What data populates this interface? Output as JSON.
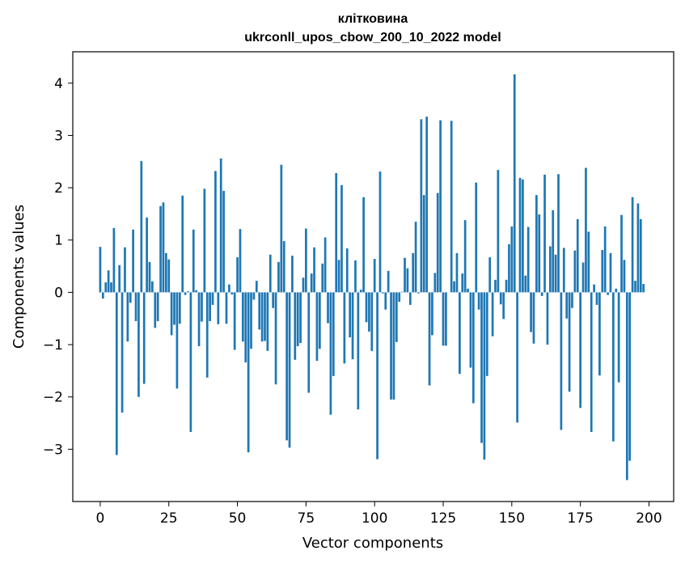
{
  "chart_data": {
    "type": "bar",
    "title": "клітковина",
    "subtitle": "ukrconll_upos_cbow_200_10_2022 model",
    "xlabel": "Vector components",
    "ylabel": "Components values",
    "xlim": [
      -10,
      209
    ],
    "ylim": [
      -4.0,
      4.6
    ],
    "xticks": [
      0,
      25,
      50,
      75,
      100,
      125,
      150,
      175,
      200
    ],
    "yticks": [
      -3,
      -2,
      -1,
      0,
      1,
      2,
      3,
      4
    ],
    "bar_color": "#1f77b4",
    "grid": false,
    "legend": "none",
    "values": [
      0.87,
      -0.12,
      0.19,
      0.42,
      0.19,
      1.23,
      -3.11,
      0.52,
      -2.3,
      0.86,
      -0.94,
      -0.2,
      1.2,
      -0.55,
      -2.0,
      2.51,
      -1.75,
      1.43,
      0.58,
      0.21,
      -0.68,
      -0.55,
      1.65,
      1.72,
      0.75,
      0.63,
      -0.82,
      -0.62,
      -1.84,
      -0.6,
      1.85,
      -0.05,
      0.02,
      -2.67,
      1.2,
      0.04,
      -1.03,
      -0.56,
      1.98,
      -1.63,
      -0.55,
      -0.24,
      2.32,
      -0.61,
      2.56,
      1.94,
      -0.6,
      0.15,
      -0.04,
      -1.1,
      0.67,
      1.21,
      -0.94,
      -1.34,
      -3.06,
      -1.08,
      -0.14,
      0.22,
      -0.71,
      -0.94,
      -0.93,
      -1.12,
      0.72,
      -0.3,
      -1.76,
      0.58,
      2.44,
      0.98,
      -2.83,
      -2.97,
      0.7,
      -1.29,
      -1.03,
      -0.97,
      0.28,
      1.22,
      -1.92,
      0.36,
      0.86,
      -1.31,
      -1.08,
      0.55,
      1.05,
      -0.59,
      -2.34,
      -1.6,
      2.28,
      0.62,
      2.05,
      -1.36,
      0.84,
      -0.86,
      -1.28,
      0.61,
      -2.24,
      0.05,
      1.82,
      -0.57,
      -0.75,
      -1.12,
      0.64,
      -3.19,
      2.31,
      -0.02,
      -0.33,
      0.41,
      -2.05,
      -2.05,
      -0.95,
      -0.18,
      0.01,
      0.66,
      0.46,
      -0.24,
      0.75,
      1.35,
      -0.02,
      3.31,
      1.86,
      3.36,
      -1.78,
      -0.82,
      0.37,
      1.9,
      3.29,
      -1.02,
      -1.02,
      0.0,
      3.28,
      0.21,
      0.75,
      -1.56,
      0.36,
      1.38,
      0.07,
      -1.44,
      -2.12,
      2.1,
      -0.33,
      -2.88,
      -3.2,
      -1.6,
      0.67,
      -0.84,
      0.24,
      2.34,
      -0.23,
      -0.51,
      0.24,
      0.92,
      1.26,
      4.17,
      -2.49,
      2.19,
      2.16,
      0.32,
      1.25,
      -0.76,
      -0.98,
      1.86,
      1.49,
      -0.07,
      2.25,
      -1.0,
      0.88,
      1.57,
      0.72,
      2.26,
      -2.63,
      0.85,
      -0.5,
      -1.9,
      -0.3,
      0.8,
      1.4,
      -2.21,
      0.57,
      2.38,
      1.16,
      -2.67,
      0.15,
      -0.24,
      -1.59,
      0.81,
      1.26,
      -0.05,
      0.75,
      -2.85,
      0.07,
      -1.72,
      1.48,
      0.62,
      -3.59,
      -3.22,
      1.82,
      0.22,
      1.7,
      1.4,
      0.16,
      0.0
    ]
  }
}
